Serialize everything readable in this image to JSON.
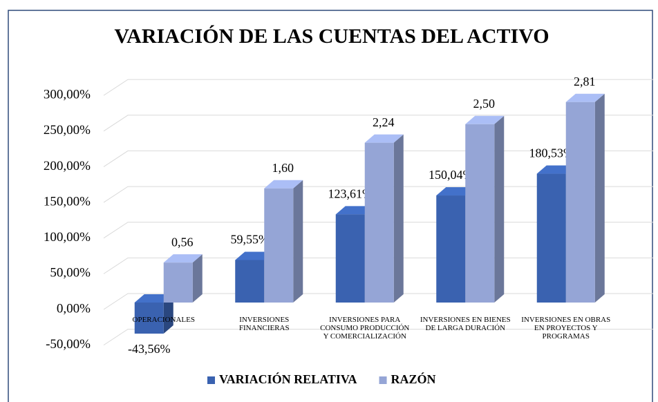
{
  "chart_data": {
    "type": "bar3d",
    "title": "VARIACIÓN DE LAS CUENTAS DEL ACTIVO",
    "categories": [
      "OPERACIONALES",
      "INVERSIONES FINANCIERAS",
      "INVERSIONES PARA CONSUMO PRODUCCIÓN Y COMERCIALIZACIÓN",
      "INVERSIONES EN BIENES DE LARGA DURACIÓN",
      "INVERSIONES EN OBRAS EN PROYECTOS Y PROGRAMAS"
    ],
    "series": [
      {
        "name": "VARIACIÓN RELATIVA",
        "color": "#3a62b0",
        "values": [
          -43.56,
          59.55,
          123.61,
          150.04,
          180.53
        ],
        "value_labels": [
          "-43,56%",
          "59,55%",
          "123,61%",
          "150,04%",
          "180,53%"
        ]
      },
      {
        "name": "RAZÓN",
        "color": "#95a5d6",
        "values": [
          56,
          160,
          224,
          250,
          281
        ],
        "value_labels": [
          "0,56",
          "1,60",
          "2,24",
          "2,50",
          "2,81"
        ]
      }
    ],
    "ylim": [
      -50,
      300
    ],
    "yticks": [
      {
        "value": -50,
        "label": "-50,00%"
      },
      {
        "value": 0,
        "label": "0,00%"
      },
      {
        "value": 50,
        "label": "50,00%"
      },
      {
        "value": 100,
        "label": "100,00%"
      },
      {
        "value": 150,
        "label": "150,00%"
      },
      {
        "value": 200,
        "label": "200,00%"
      },
      {
        "value": 250,
        "label": "250,00%"
      },
      {
        "value": 300,
        "label": "300,00%"
      }
    ],
    "grid": true,
    "legend": "bottom"
  }
}
